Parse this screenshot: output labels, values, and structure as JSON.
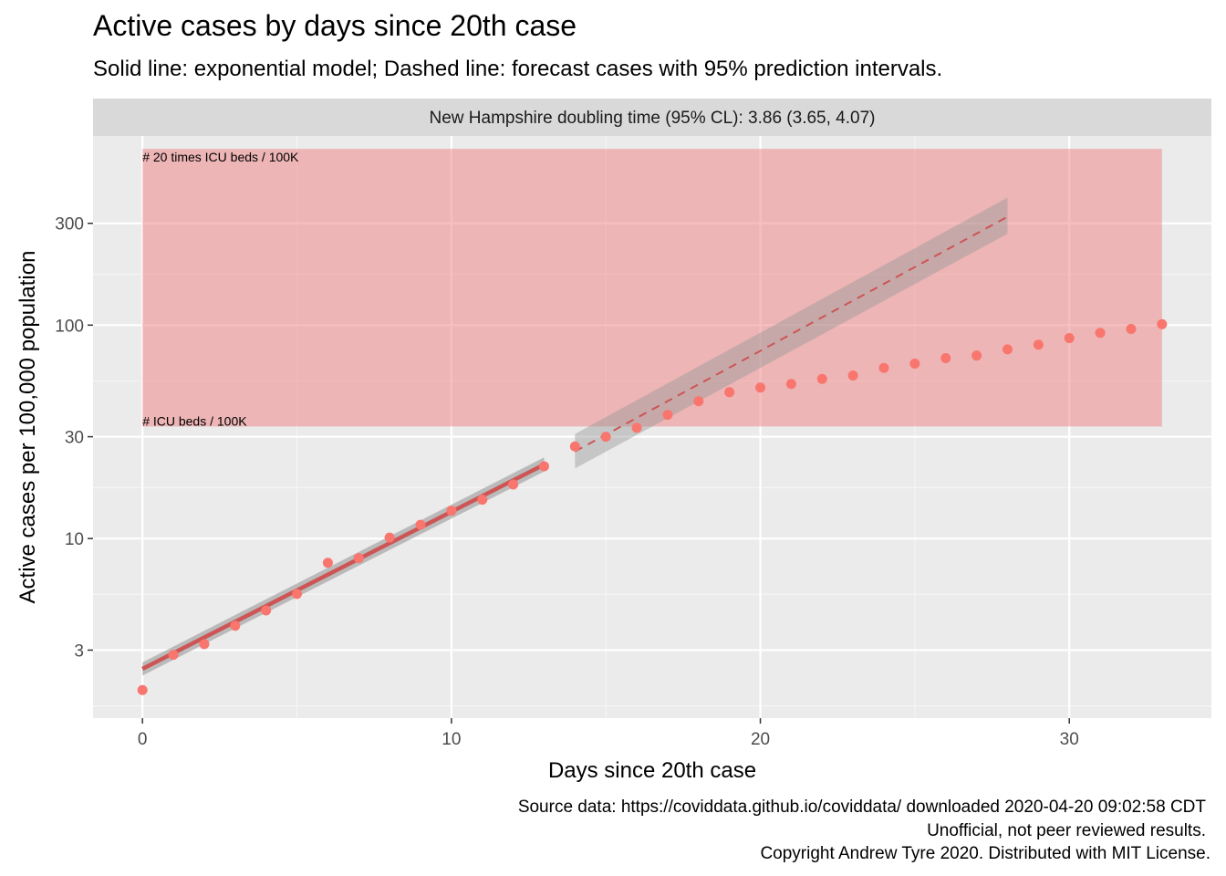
{
  "chart_data": {
    "type": "scatter",
    "title": "Active cases by days since 20th case",
    "subtitle": "Solid line: exponential model; Dashed line: forecast cases with 95% prediction intervals.",
    "facet_label": "New Hampshire doubling time (95% CL): 3.86 (3.65, 4.07)",
    "xlabel": "Days since 20th case",
    "ylabel": "Active cases per 100,000 population",
    "y_scale": "log10",
    "xlim": [
      -1.6,
      34.6
    ],
    "ylim": [
      1.44,
      770
    ],
    "x_ticks": [
      0,
      10,
      20,
      30
    ],
    "y_ticks": [
      3,
      10,
      30,
      100,
      300
    ],
    "grid": true,
    "icu_band": {
      "x": [
        0,
        33
      ],
      "y": [
        33.5,
        670
      ],
      "color": "#f08080",
      "lower_label": "# ICU beds / 100K",
      "upper_label": "# 20 times ICU beds / 100K"
    },
    "observed": {
      "color": "#f8766d",
      "x": [
        0,
        1,
        2,
        3,
        4,
        5,
        6,
        7,
        8,
        9,
        10,
        11,
        12,
        13,
        14,
        15,
        16,
        17,
        18,
        19,
        20,
        21,
        22,
        23,
        24,
        25,
        26,
        27,
        28,
        29,
        30,
        31,
        32,
        33
      ],
      "y": [
        1.95,
        2.85,
        3.2,
        3.9,
        4.6,
        5.5,
        7.7,
        8.1,
        10.1,
        11.6,
        13.5,
        15.2,
        17.9,
        21.8,
        27.0,
        30.0,
        33.0,
        38.0,
        44.0,
        48.5,
        51.0,
        53.0,
        56.0,
        58.0,
        63.0,
        66.0,
        70.0,
        72.0,
        77.0,
        81.0,
        87.0,
        92.0,
        96.0,
        101.0
      ]
    },
    "model_fit": {
      "x": [
        0,
        13
      ],
      "y": [
        2.45,
        22.2
      ],
      "ci_lower": [
        2.28,
        20.6
      ],
      "ci_upper": [
        2.63,
        24.0
      ],
      "color": "#cd5555"
    },
    "forecast": {
      "x": [
        14,
        28
      ],
      "y": [
        25.6,
        322
      ],
      "pi_lower": [
        21.3,
        268
      ],
      "pi_upper": [
        30.9,
        396
      ],
      "color": "#cd5555"
    },
    "caption": [
      "Source data: https://coviddata.github.io/coviddata/ downloaded  2020-04-20 09:02:58 CDT",
      "Unofficial, not peer reviewed results.",
      "Copyright Andrew Tyre 2020. Distributed with MIT License."
    ]
  }
}
